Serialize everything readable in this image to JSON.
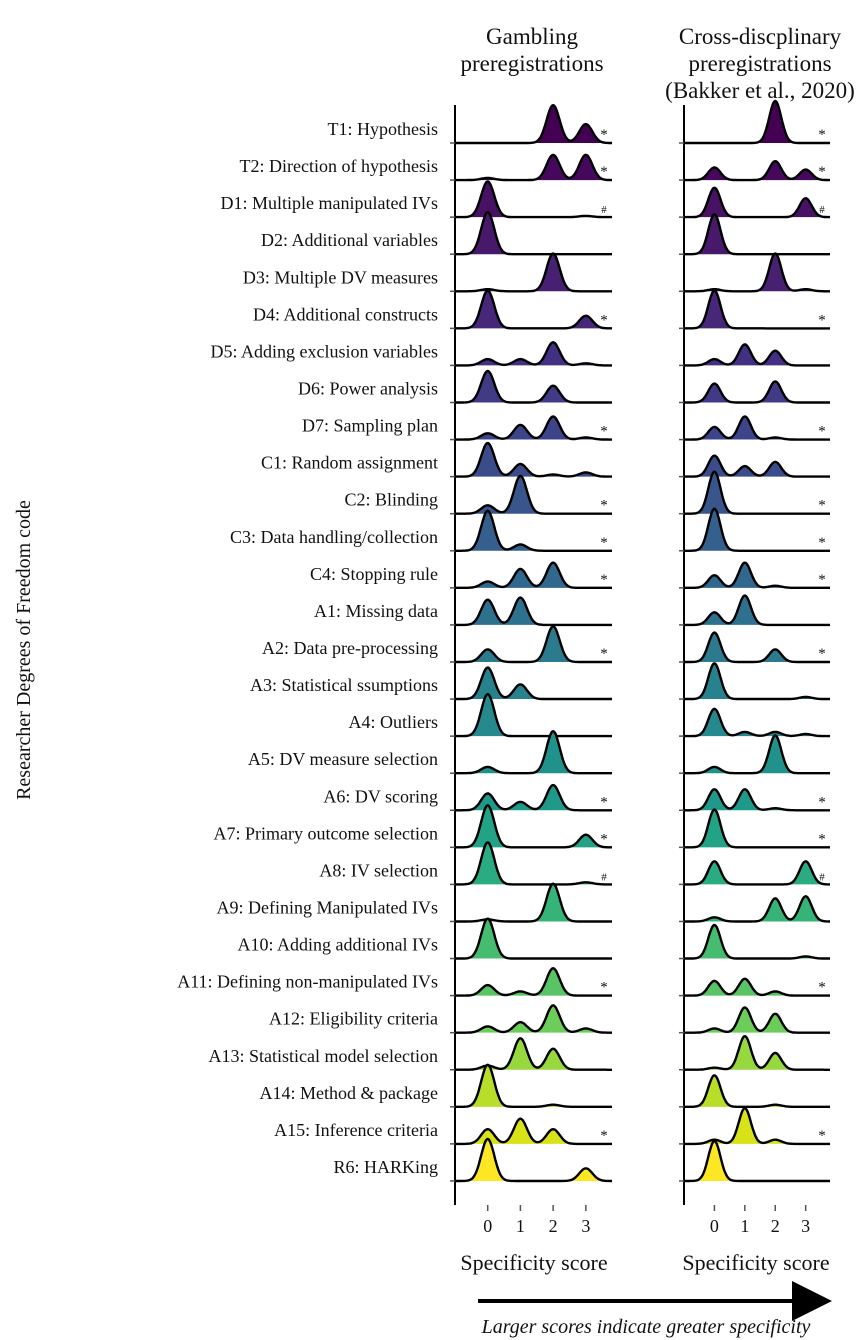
{
  "chart_data": {
    "type": "ridgeline",
    "ylabel": "Researcher Degrees of Freedom code",
    "note": "Larger scores indicate greater specificity",
    "categories": [
      "T1: Hypothesis",
      "T2: Direction of hypothesis",
      "D1: Multiple manipulated IVs",
      "D2: Additional variables",
      "D3: Multiple DV measures",
      "D4: Additional constructs",
      "D5: Adding exclusion variables",
      "D6: Power analysis",
      "D7: Sampling plan",
      "C1: Random assignment",
      "C2: Blinding",
      "C3: Data handling/collection",
      "C4: Stopping rule",
      "A1: Missing data",
      "A2: Data pre-processing",
      "A3: Statistical ssumptions",
      "A4: Outliers",
      "A5: DV measure selection",
      "A6: DV scoring",
      "A7: Primary outcome selection",
      "A8: IV selection",
      "A9: Defining Manipulated IVs",
      "A10: Adding additional IVs",
      "A11: Defining non-manipulated IVs",
      "A12: Eligibility criteria",
      "A13: Statistical model selection",
      "A14: Method & package",
      "A15: Inference criteria",
      "R6: HARKing"
    ],
    "colors": [
      "#440154",
      "#46085c",
      "#471164",
      "#48186a",
      "#472072",
      "#46277a",
      "#443082",
      "#413a85",
      "#3e4489",
      "#3b4c8b",
      "#38568b",
      "#355f8d",
      "#31688e",
      "#2e718e",
      "#2b7a8e",
      "#28828e",
      "#25898e",
      "#21918c",
      "#1f9a8a",
      "#22a386",
      "#2aab81",
      "#36b478",
      "#45bc6f",
      "#58c465",
      "#6ccd5a",
      "#97d83e",
      "#b8de29",
      "#d8e219",
      "#fde725"
    ],
    "x": [
      0,
      1,
      2,
      3
    ],
    "xlim": [
      -1,
      3.8
    ],
    "xticks": [
      0,
      1,
      2,
      3
    ],
    "panels": [
      {
        "title": [
          "Gambling",
          "preregistrations"
        ],
        "xlabel": "Specificity score",
        "series": [
          {
            "values": [
              0,
              0,
              0.9,
              0.45
            ],
            "flag": "*"
          },
          {
            "values": [
              0.05,
              0,
              0.6,
              0.6
            ],
            "flag": "*"
          },
          {
            "values": [
              0.85,
              0,
              0,
              0.03
            ],
            "flag": "#"
          },
          {
            "values": [
              1,
              0,
              0,
              0
            ],
            "flag": null
          },
          {
            "values": [
              0.05,
              0,
              0.9,
              0
            ],
            "flag": null
          },
          {
            "values": [
              0.9,
              0,
              0,
              0.3
            ],
            "flag": "*"
          },
          {
            "values": [
              0.15,
              0.15,
              0.55,
              0.05
            ],
            "flag": null
          },
          {
            "values": [
              0.75,
              0,
              0.4,
              0
            ],
            "flag": null
          },
          {
            "values": [
              0.15,
              0.35,
              0.55,
              0.05
            ],
            "flag": "*"
          },
          {
            "values": [
              0.8,
              0.3,
              0.05,
              0.1
            ],
            "flag": null
          },
          {
            "values": [
              0.2,
              0.9,
              0,
              0
            ],
            "flag": "*"
          },
          {
            "values": [
              0.95,
              0.15,
              0,
              0
            ],
            "flag": "*"
          },
          {
            "values": [
              0.15,
              0.45,
              0.6,
              0
            ],
            "flag": "*"
          },
          {
            "values": [
              0.6,
              0.65,
              0,
              0
            ],
            "flag": null
          },
          {
            "values": [
              0.3,
              0,
              0.85,
              0
            ],
            "flag": "*"
          },
          {
            "values": [
              0.75,
              0.35,
              0,
              0
            ],
            "flag": null
          },
          {
            "values": [
              1,
              0,
              0,
              0
            ],
            "flag": null
          },
          {
            "values": [
              0.15,
              0,
              1,
              0
            ],
            "flag": null
          },
          {
            "values": [
              0.4,
              0.2,
              0.6,
              0
            ],
            "flag": "*"
          },
          {
            "values": [
              1,
              0,
              0,
              0.3
            ],
            "flag": "*"
          },
          {
            "values": [
              1,
              0,
              0,
              0.05
            ],
            "flag": "#"
          },
          {
            "values": [
              0.05,
              0,
              0.9,
              0
            ],
            "flag": null
          },
          {
            "values": [
              0.95,
              0,
              0,
              0
            ],
            "flag": null
          },
          {
            "values": [
              0.25,
              0.1,
              0.65,
              0
            ],
            "flag": "*"
          },
          {
            "values": [
              0.15,
              0.25,
              0.65,
              0.1
            ],
            "flag": null
          },
          {
            "values": [
              0.1,
              0.75,
              0.5,
              0
            ],
            "flag": null
          },
          {
            "values": [
              1,
              0,
              0.05,
              0
            ],
            "flag": null
          },
          {
            "values": [
              0.35,
              0.6,
              0.35,
              0
            ],
            "flag": "*"
          },
          {
            "values": [
              1,
              0,
              0,
              0.3
            ],
            "flag": null
          }
        ]
      },
      {
        "title": [
          "Cross-discplinary",
          "preregistrations",
          "(Bakker et al., 2020)"
        ],
        "xlabel": "Specificity score",
        "series": [
          {
            "values": [
              0,
              0,
              1,
              0
            ],
            "flag": "*"
          },
          {
            "values": [
              0.3,
              0,
              0.45,
              0.25
            ],
            "flag": "*"
          },
          {
            "values": [
              0.7,
              0,
              0,
              0.45
            ],
            "flag": "#"
          },
          {
            "values": [
              0.95,
              0,
              0,
              0
            ],
            "flag": null
          },
          {
            "values": [
              0.05,
              0,
              0.9,
              0.05
            ],
            "flag": null
          },
          {
            "values": [
              0.9,
              0,
              0,
              0
            ],
            "flag": "*"
          },
          {
            "values": [
              0.15,
              0.5,
              0.35,
              0
            ],
            "flag": null
          },
          {
            "values": [
              0.45,
              0,
              0.5,
              0
            ],
            "flag": null
          },
          {
            "values": [
              0.3,
              0.55,
              0.05,
              0
            ],
            "flag": "*"
          },
          {
            "values": [
              0.5,
              0.25,
              0.35,
              0
            ],
            "flag": null
          },
          {
            "values": [
              1,
              0,
              0,
              0
            ],
            "flag": "*"
          },
          {
            "values": [
              1,
              0,
              0,
              0
            ],
            "flag": "*"
          },
          {
            "values": [
              0.3,
              0.6,
              0.05,
              0
            ],
            "flag": "*"
          },
          {
            "values": [
              0.3,
              0.7,
              0,
              0
            ],
            "flag": null
          },
          {
            "values": [
              0.7,
              0,
              0.3,
              0
            ],
            "flag": "*"
          },
          {
            "values": [
              0.85,
              0,
              0,
              0.05
            ],
            "flag": null
          },
          {
            "values": [
              0.65,
              0.1,
              0.1,
              0.05
            ],
            "flag": null
          },
          {
            "values": [
              0.15,
              0,
              0.9,
              0
            ],
            "flag": null
          },
          {
            "values": [
              0.5,
              0.5,
              0.05,
              0
            ],
            "flag": "*"
          },
          {
            "values": [
              0.9,
              0,
              0,
              0
            ],
            "flag": "*"
          },
          {
            "values": [
              0.55,
              0,
              0,
              0.55
            ],
            "flag": "#"
          },
          {
            "values": [
              0.1,
              0,
              0.55,
              0.6
            ],
            "flag": null
          },
          {
            "values": [
              0.8,
              0,
              0,
              0.05
            ],
            "flag": null
          },
          {
            "values": [
              0.35,
              0.4,
              0.1,
              0
            ],
            "flag": "*"
          },
          {
            "values": [
              0.1,
              0.6,
              0.45,
              0
            ],
            "flag": null
          },
          {
            "values": [
              0.05,
              0.8,
              0.4,
              0
            ],
            "flag": null
          },
          {
            "values": [
              0.75,
              0,
              0.05,
              0
            ],
            "flag": null
          },
          {
            "values": [
              0.1,
              0.85,
              0.1,
              0
            ],
            "flag": "*"
          },
          {
            "values": [
              0.95,
              0,
              0,
              0
            ],
            "flag": null
          }
        ]
      }
    ]
  }
}
